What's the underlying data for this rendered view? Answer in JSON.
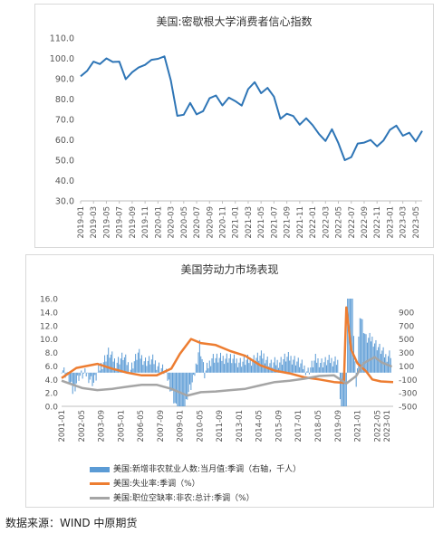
{
  "source_text": "数据来源：WIND 中原期货",
  "chart_data": [
    {
      "type": "line",
      "title": "美国:密歇根大学消费者信心指数",
      "ylim": [
        30,
        110
      ],
      "yticks": [
        "30.0",
        "40.0",
        "50.0",
        "60.0",
        "70.0",
        "80.0",
        "90.0",
        "100.0",
        "110.0"
      ],
      "xtick_labels": [
        "2019-01",
        "2019-03",
        "2019-05",
        "2019-07",
        "2019-09",
        "2019-11",
        "2020-01",
        "2020-03",
        "2020-05",
        "2020-07",
        "2020-09",
        "2020-11",
        "2021-01",
        "2021-03",
        "2021-05",
        "2021-07",
        "2021-09",
        "2021-11",
        "2022-01",
        "2022-03",
        "2022-05",
        "2022-07",
        "2022-09",
        "2022-11",
        "2023-01",
        "2023-03",
        "2023-05"
      ],
      "color": "#2e75b6",
      "grid": false,
      "x": [
        "2019-01",
        "2019-02",
        "2019-03",
        "2019-04",
        "2019-05",
        "2019-06",
        "2019-07",
        "2019-08",
        "2019-09",
        "2019-10",
        "2019-11",
        "2019-12",
        "2020-01",
        "2020-02",
        "2020-03",
        "2020-04",
        "2020-05",
        "2020-06",
        "2020-07",
        "2020-08",
        "2020-09",
        "2020-10",
        "2020-11",
        "2020-12",
        "2021-01",
        "2021-02",
        "2021-03",
        "2021-04",
        "2021-05",
        "2021-06",
        "2021-07",
        "2021-08",
        "2021-09",
        "2021-10",
        "2021-11",
        "2021-12",
        "2022-01",
        "2022-02",
        "2022-03",
        "2022-04",
        "2022-05",
        "2022-06",
        "2022-07",
        "2022-08",
        "2022-09",
        "2022-10",
        "2022-11",
        "2022-12",
        "2023-01",
        "2023-02",
        "2023-03",
        "2023-04",
        "2023-05",
        "2023-06"
      ],
      "values": [
        91.2,
        93.8,
        98.4,
        97.2,
        100.0,
        98.2,
        98.4,
        89.8,
        93.2,
        95.5,
        96.8,
        99.3,
        99.8,
        101.0,
        89.1,
        71.8,
        72.3,
        78.1,
        72.5,
        74.1,
        80.4,
        81.8,
        76.9,
        80.7,
        79.0,
        76.8,
        84.9,
        88.3,
        82.9,
        85.5,
        81.2,
        70.3,
        72.8,
        71.7,
        67.4,
        70.6,
        67.2,
        62.8,
        59.4,
        65.2,
        58.4,
        50.0,
        51.5,
        58.2,
        58.6,
        59.9,
        56.8,
        59.7,
        64.9,
        67.0,
        62.0,
        63.5,
        59.2,
        64.4
      ]
    },
    {
      "type": "bar",
      "title": "美国劳动力市场表现",
      "xtick_labels": [
        "2001-01",
        "2002-05",
        "2003-09",
        "2005-01",
        "2006-05",
        "2007-09",
        "2009-01",
        "2010-05",
        "2011-09",
        "2013-01",
        "2014-05",
        "2015-09",
        "2017-01",
        "2018-05",
        "2019-09",
        "2021-01",
        "2022-05",
        "2023-01"
      ],
      "left_ylim": [
        0,
        16
      ],
      "left_yticks": [
        "0.0",
        "2.0",
        "4.0",
        "6.0",
        "8.0",
        "10.0",
        "12.0",
        "14.0",
        "16.0"
      ],
      "right_ylim": [
        -500,
        1100
      ],
      "right_yticks": [
        "-500",
        "-300",
        "-100",
        "100",
        "300",
        "500",
        "700",
        "900"
      ],
      "series": [
        {
          "name": "美国:新增非农就业人数:当月值:季调（右轴，千人）",
          "type": "bar",
          "axis": "right",
          "color": "#5b9bd5",
          "points": [
            [
              "2001-01",
              80
            ],
            [
              "2001-06",
              -60
            ],
            [
              "2001-10",
              -280
            ],
            [
              "2002-03",
              -50
            ],
            [
              "2002-09",
              -20
            ],
            [
              "2003-03",
              -150
            ],
            [
              "2003-09",
              110
            ],
            [
              "2004-03",
              300
            ],
            [
              "2004-09",
              150
            ],
            [
              "2005-03",
              240
            ],
            [
              "2005-09",
              60
            ],
            [
              "2006-03",
              280
            ],
            [
              "2006-09",
              170
            ],
            [
              "2007-03",
              180
            ],
            [
              "2007-09",
              80
            ],
            [
              "2008-01",
              20
            ],
            [
              "2008-05",
              -190
            ],
            [
              "2008-09",
              -450
            ],
            [
              "2008-12",
              -700
            ],
            [
              "2009-03",
              -800
            ],
            [
              "2009-07",
              -330
            ],
            [
              "2009-12",
              -120
            ],
            [
              "2010-05",
              430
            ],
            [
              "2010-09",
              -30
            ],
            [
              "2011-03",
              230
            ],
            [
              "2011-09",
              200
            ],
            [
              "2012-03",
              230
            ],
            [
              "2012-09",
              180
            ],
            [
              "2013-03",
              160
            ],
            [
              "2013-09",
              180
            ],
            [
              "2014-03",
              220
            ],
            [
              "2014-09",
              250
            ],
            [
              "2015-03",
              120
            ],
            [
              "2015-09",
              160
            ],
            [
              "2016-03",
              220
            ],
            [
              "2016-09",
              210
            ],
            [
              "2017-03",
              120
            ],
            [
              "2017-09",
              20
            ],
            [
              "2018-03",
              190
            ],
            [
              "2018-09",
              150
            ],
            [
              "2019-03",
              180
            ],
            [
              "2019-09",
              190
            ],
            [
              "2020-03",
              -1400
            ],
            [
              "2020-04",
              -20500
            ],
            [
              "2020-05",
              2800
            ],
            [
              "2020-06",
              4800
            ],
            [
              "2020-08",
              1500
            ],
            [
              "2020-12",
              -300
            ],
            [
              "2021-03",
              900
            ],
            [
              "2021-08",
              500
            ],
            [
              "2022-01",
              500
            ],
            [
              "2022-06",
              380
            ],
            [
              "2022-12",
              240
            ],
            [
              "2023-05",
              300
            ]
          ]
        },
        {
          "name": "美国:失业率:季调（%）",
          "type": "line",
          "axis": "left",
          "color": "#ed7d31",
          "points": [
            [
              "2001-01",
              4.2
            ],
            [
              "2002-01",
              5.7
            ],
            [
              "2003-06",
              6.3
            ],
            [
              "2004-06",
              5.6
            ],
            [
              "2005-06",
              5.0
            ],
            [
              "2006-06",
              4.6
            ],
            [
              "2007-06",
              4.6
            ],
            [
              "2008-06",
              5.6
            ],
            [
              "2009-01",
              7.8
            ],
            [
              "2009-10",
              10.0
            ],
            [
              "2010-06",
              9.4
            ],
            [
              "2011-06",
              9.1
            ],
            [
              "2012-06",
              8.2
            ],
            [
              "2013-06",
              7.5
            ],
            [
              "2014-06",
              6.1
            ],
            [
              "2015-06",
              5.3
            ],
            [
              "2016-06",
              4.9
            ],
            [
              "2017-06",
              4.3
            ],
            [
              "2018-06",
              4.0
            ],
            [
              "2019-06",
              3.6
            ],
            [
              "2020-02",
              3.5
            ],
            [
              "2020-04",
              14.7
            ],
            [
              "2020-08",
              8.4
            ],
            [
              "2021-01",
              6.4
            ],
            [
              "2021-08",
              5.2
            ],
            [
              "2022-01",
              4.0
            ],
            [
              "2022-08",
              3.7
            ],
            [
              "2023-06",
              3.6
            ]
          ]
        },
        {
          "name": "美国:职位空缺率:非农:总计:季调（%）",
          "type": "line",
          "axis": "left",
          "color": "#a5a5a5",
          "points": [
            [
              "2001-01",
              3.8
            ],
            [
              "2002-06",
              2.7
            ],
            [
              "2003-06",
              2.4
            ],
            [
              "2004-06",
              2.6
            ],
            [
              "2005-06",
              2.9
            ],
            [
              "2006-06",
              3.2
            ],
            [
              "2007-06",
              3.2
            ],
            [
              "2008-06",
              2.6
            ],
            [
              "2009-07",
              1.6
            ],
            [
              "2010-06",
              2.1
            ],
            [
              "2011-06",
              2.2
            ],
            [
              "2012-06",
              2.4
            ],
            [
              "2013-06",
              2.6
            ],
            [
              "2014-06",
              3.1
            ],
            [
              "2015-06",
              3.6
            ],
            [
              "2016-06",
              3.8
            ],
            [
              "2017-06",
              4.1
            ],
            [
              "2018-06",
              4.5
            ],
            [
              "2019-06",
              4.6
            ],
            [
              "2020-04",
              3.4
            ],
            [
              "2020-12",
              4.5
            ],
            [
              "2021-06",
              6.4
            ],
            [
              "2022-03",
              7.3
            ],
            [
              "2022-09",
              6.5
            ],
            [
              "2023-05",
              5.9
            ]
          ]
        }
      ]
    }
  ]
}
